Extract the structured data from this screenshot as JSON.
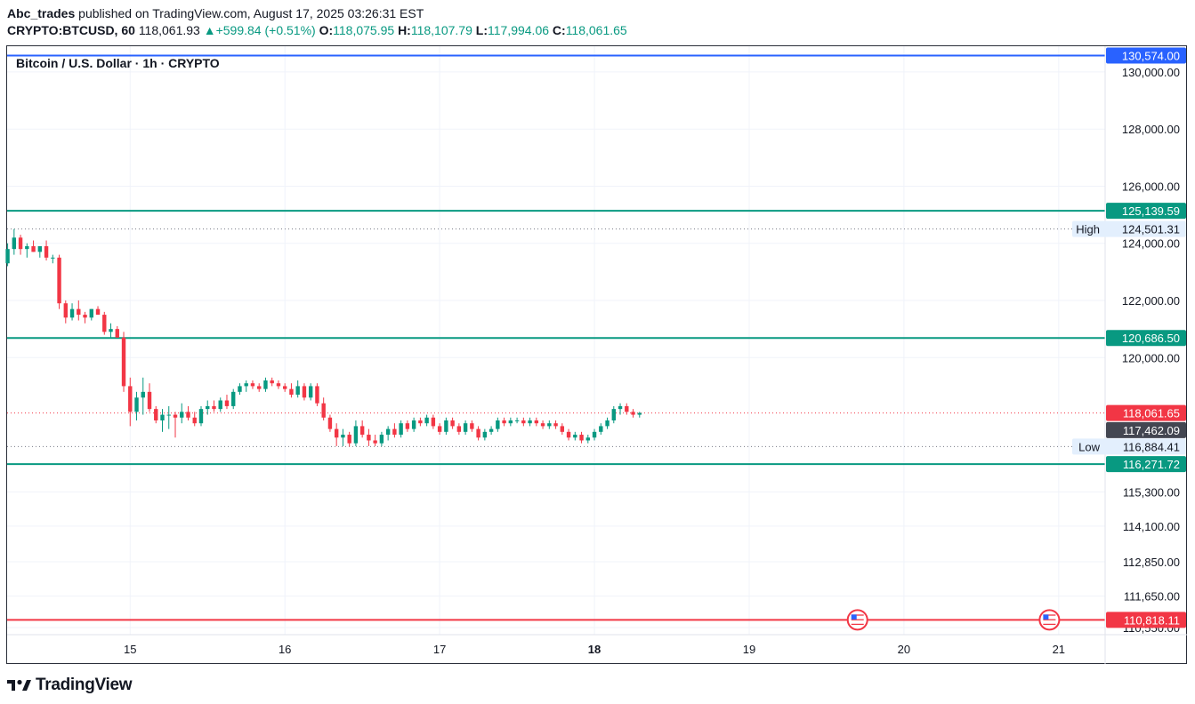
{
  "header": {
    "publisher": "Abc_trades",
    "published_text": "published on TradingView.com, August 17, 2025 03:26:31 EST",
    "symbol": "CRYPTO:BTCUSD, 60",
    "last": "118,061.93",
    "change": "+599.84 (+0.51%)",
    "open_label": "O:",
    "open": "118,075.95",
    "high_label": "H:",
    "high": "118,107.79",
    "low_label": "L:",
    "low": "117,994.06",
    "close_label": "C:",
    "close": "118,061.65",
    "up_color": "#089981"
  },
  "chart_title": "Bitcoin / U.S. Dollar · 1h · CRYPTO",
  "footer": {
    "brand": "TradingView",
    "logo_icon": "tradingview-logo-icon"
  },
  "chart_data": {
    "type": "candlestick",
    "x_ticks": [
      {
        "label": "15",
        "day": 15
      },
      {
        "label": "16",
        "day": 16
      },
      {
        "label": "17",
        "day": 17
      },
      {
        "label": "18",
        "day": 18
      },
      {
        "label": "19",
        "day": 19
      },
      {
        "label": "20",
        "day": 20
      },
      {
        "label": "21",
        "day": 21
      }
    ],
    "x_range_days": [
      14.205,
      21.3
    ],
    "y_range": [
      110300,
      130900
    ],
    "y_ticks": [
      {
        "label": "130,000.00",
        "value": 130000
      },
      {
        "label": "128,000.00",
        "value": 128000
      },
      {
        "label": "126,000.00",
        "value": 126000
      },
      {
        "label": "124,000.00",
        "value": 124000
      },
      {
        "label": "122,000.00",
        "value": 122000
      },
      {
        "label": "120,000.00",
        "value": 120000
      },
      {
        "label": "115,300.00",
        "value": 115300
      },
      {
        "label": "114,100.00",
        "value": 114100
      },
      {
        "label": "112,850.00",
        "value": 112850
      },
      {
        "label": "111,650.00",
        "value": 111650
      },
      {
        "label": "110,550.00",
        "value": 110550
      }
    ],
    "horizontal_levels": [
      {
        "label": "130,574.00",
        "value": 130574,
        "color": "#2962ff",
        "style": "solid"
      },
      {
        "label": "125,139.59",
        "value": 125139.59,
        "color": "#089981",
        "style": "solid"
      },
      {
        "label": "120,686.50",
        "value": 120686.5,
        "color": "#089981",
        "style": "solid"
      },
      {
        "label": "116,271.72",
        "value": 116271.72,
        "color": "#089981",
        "style": "solid"
      },
      {
        "label": "110,818.11",
        "value": 110818.11,
        "color": "#f23645",
        "style": "solid"
      }
    ],
    "price_markers": [
      {
        "label": "118,061.65",
        "value": 118061.65,
        "color": "#f23645",
        "tag": ""
      },
      {
        "label": "117,462.09",
        "value": 117462.09,
        "color": "#434651",
        "tag": ""
      },
      {
        "label": "124,501.31",
        "value": 124501.31,
        "color": "#e3effd",
        "tag": "High"
      },
      {
        "label": "116,884.41",
        "value": 116884.41,
        "color": "#e3effd",
        "tag": "Low"
      }
    ],
    "dotted_lines": [
      {
        "value": 124501.31,
        "color": "#787b86"
      },
      {
        "value": 118061.65,
        "color": "#f23645"
      },
      {
        "value": 116884.41,
        "color": "#787b86"
      }
    ],
    "event_icons": [
      {
        "day": 19.7,
        "value": 110818.11,
        "icon": "us-flag-icon"
      },
      {
        "day": 20.94,
        "value": 110818.11,
        "icon": "us-flag-icon"
      }
    ],
    "candles": [
      {
        "o": 123300,
        "h": 124000,
        "l": 123200,
        "c": 123800
      },
      {
        "o": 123800,
        "h": 124501,
        "l": 123600,
        "c": 124200
      },
      {
        "o": 124200,
        "h": 124300,
        "l": 123600,
        "c": 123800
      },
      {
        "o": 123800,
        "h": 124000,
        "l": 123500,
        "c": 123900
      },
      {
        "o": 123900,
        "h": 124100,
        "l": 123700,
        "c": 123700
      },
      {
        "o": 123700,
        "h": 123900,
        "l": 123500,
        "c": 123900
      },
      {
        "o": 123900,
        "h": 124100,
        "l": 123400,
        "c": 123500
      },
      {
        "o": 123500,
        "h": 123600,
        "l": 123300,
        "c": 123500
      },
      {
        "o": 123500,
        "h": 123600,
        "l": 121700,
        "c": 121900
      },
      {
        "o": 121900,
        "h": 122000,
        "l": 121200,
        "c": 121400
      },
      {
        "o": 121400,
        "h": 121900,
        "l": 121300,
        "c": 121700
      },
      {
        "o": 121700,
        "h": 122000,
        "l": 121300,
        "c": 121500
      },
      {
        "o": 121500,
        "h": 121600,
        "l": 121200,
        "c": 121400
      },
      {
        "o": 121400,
        "h": 121700,
        "l": 121300,
        "c": 121700
      },
      {
        "o": 121700,
        "h": 121800,
        "l": 121500,
        "c": 121500
      },
      {
        "o": 121500,
        "h": 121600,
        "l": 120800,
        "c": 120900
      },
      {
        "o": 120900,
        "h": 121200,
        "l": 120700,
        "c": 121000
      },
      {
        "o": 121000,
        "h": 121100,
        "l": 120700,
        "c": 120700
      },
      {
        "o": 120700,
        "h": 120900,
        "l": 118800,
        "c": 119000
      },
      {
        "o": 119000,
        "h": 119300,
        "l": 117600,
        "c": 118100
      },
      {
        "o": 118100,
        "h": 118800,
        "l": 117800,
        "c": 118600
      },
      {
        "o": 118600,
        "h": 119300,
        "l": 118000,
        "c": 118800
      },
      {
        "o": 118800,
        "h": 119100,
        "l": 118100,
        "c": 118200
      },
      {
        "o": 118200,
        "h": 118300,
        "l": 117700,
        "c": 117800
      },
      {
        "o": 117800,
        "h": 118200,
        "l": 117400,
        "c": 118000
      },
      {
        "o": 118000,
        "h": 118300,
        "l": 117500,
        "c": 118000
      },
      {
        "o": 118000,
        "h": 118100,
        "l": 117200,
        "c": 117900
      },
      {
        "o": 117900,
        "h": 118400,
        "l": 117700,
        "c": 118100
      },
      {
        "o": 118100,
        "h": 118300,
        "l": 117800,
        "c": 117900
      },
      {
        "o": 117900,
        "h": 118100,
        "l": 117600,
        "c": 117700
      },
      {
        "o": 117700,
        "h": 118300,
        "l": 117600,
        "c": 118200
      },
      {
        "o": 118200,
        "h": 118500,
        "l": 118000,
        "c": 118300
      },
      {
        "o": 118300,
        "h": 118500,
        "l": 118100,
        "c": 118200
      },
      {
        "o": 118200,
        "h": 118600,
        "l": 118100,
        "c": 118500
      },
      {
        "o": 118500,
        "h": 118700,
        "l": 118200,
        "c": 118300
      },
      {
        "o": 118300,
        "h": 118900,
        "l": 118200,
        "c": 118800
      },
      {
        "o": 118800,
        "h": 119100,
        "l": 118700,
        "c": 119000
      },
      {
        "o": 119000,
        "h": 119200,
        "l": 118800,
        "c": 119100
      },
      {
        "o": 119100,
        "h": 119200,
        "l": 118900,
        "c": 119000
      },
      {
        "o": 119000,
        "h": 119100,
        "l": 118800,
        "c": 118900
      },
      {
        "o": 118900,
        "h": 119300,
        "l": 118800,
        "c": 119200
      },
      {
        "o": 119200,
        "h": 119300,
        "l": 119000,
        "c": 119100
      },
      {
        "o": 119100,
        "h": 119200,
        "l": 118900,
        "c": 119000
      },
      {
        "o": 119000,
        "h": 119100,
        "l": 118800,
        "c": 118900
      },
      {
        "o": 118900,
        "h": 119100,
        "l": 118600,
        "c": 118700
      },
      {
        "o": 118700,
        "h": 119200,
        "l": 118600,
        "c": 119000
      },
      {
        "o": 119000,
        "h": 119100,
        "l": 118500,
        "c": 118600
      },
      {
        "o": 118600,
        "h": 119100,
        "l": 118500,
        "c": 119000
      },
      {
        "o": 119000,
        "h": 119100,
        "l": 118300,
        "c": 118400
      },
      {
        "o": 118400,
        "h": 118600,
        "l": 117800,
        "c": 117900
      },
      {
        "o": 117900,
        "h": 118000,
        "l": 117400,
        "c": 117500
      },
      {
        "o": 117500,
        "h": 117700,
        "l": 116900,
        "c": 117200
      },
      {
        "o": 117200,
        "h": 117500,
        "l": 116900,
        "c": 117300
      },
      {
        "o": 117300,
        "h": 117400,
        "l": 116884,
        "c": 117000
      },
      {
        "o": 117000,
        "h": 117800,
        "l": 116900,
        "c": 117600
      },
      {
        "o": 117600,
        "h": 117800,
        "l": 117200,
        "c": 117300
      },
      {
        "o": 117300,
        "h": 117500,
        "l": 116900,
        "c": 117100
      },
      {
        "o": 117100,
        "h": 117300,
        "l": 116900,
        "c": 117000
      },
      {
        "o": 117000,
        "h": 117400,
        "l": 116900,
        "c": 117300
      },
      {
        "o": 117300,
        "h": 117600,
        "l": 117100,
        "c": 117500
      },
      {
        "o": 117500,
        "h": 117700,
        "l": 117200,
        "c": 117300
      },
      {
        "o": 117300,
        "h": 117800,
        "l": 117200,
        "c": 117700
      },
      {
        "o": 117700,
        "h": 117800,
        "l": 117400,
        "c": 117500
      },
      {
        "o": 117500,
        "h": 117900,
        "l": 117400,
        "c": 117800
      },
      {
        "o": 117800,
        "h": 117900,
        "l": 117600,
        "c": 117700
      },
      {
        "o": 117700,
        "h": 118000,
        "l": 117600,
        "c": 117900
      },
      {
        "o": 117900,
        "h": 118000,
        "l": 117500,
        "c": 117600
      },
      {
        "o": 117600,
        "h": 117700,
        "l": 117300,
        "c": 117400
      },
      {
        "o": 117400,
        "h": 117900,
        "l": 117300,
        "c": 117800
      },
      {
        "o": 117800,
        "h": 117900,
        "l": 117500,
        "c": 117600
      },
      {
        "o": 117600,
        "h": 117700,
        "l": 117300,
        "c": 117400
      },
      {
        "o": 117400,
        "h": 117800,
        "l": 117300,
        "c": 117700
      },
      {
        "o": 117700,
        "h": 117800,
        "l": 117400,
        "c": 117500
      },
      {
        "o": 117500,
        "h": 117600,
        "l": 117100,
        "c": 117200
      },
      {
        "o": 117200,
        "h": 117500,
        "l": 117100,
        "c": 117400
      },
      {
        "o": 117400,
        "h": 117600,
        "l": 117300,
        "c": 117500
      },
      {
        "o": 117500,
        "h": 117900,
        "l": 117400,
        "c": 117800
      },
      {
        "o": 117800,
        "h": 117900,
        "l": 117600,
        "c": 117700
      },
      {
        "o": 117700,
        "h": 117900,
        "l": 117600,
        "c": 117800
      },
      {
        "o": 117800,
        "h": 117900,
        "l": 117700,
        "c": 117800
      },
      {
        "o": 117800,
        "h": 117900,
        "l": 117600,
        "c": 117700
      },
      {
        "o": 117700,
        "h": 117900,
        "l": 117600,
        "c": 117800
      },
      {
        "o": 117800,
        "h": 117900,
        "l": 117600,
        "c": 117700
      },
      {
        "o": 117700,
        "h": 117800,
        "l": 117500,
        "c": 117600
      },
      {
        "o": 117600,
        "h": 117800,
        "l": 117500,
        "c": 117700
      },
      {
        "o": 117700,
        "h": 117800,
        "l": 117500,
        "c": 117600
      },
      {
        "o": 117600,
        "h": 117700,
        "l": 117300,
        "c": 117400
      },
      {
        "o": 117400,
        "h": 117500,
        "l": 117100,
        "c": 117200
      },
      {
        "o": 117200,
        "h": 117400,
        "l": 117100,
        "c": 117300
      },
      {
        "o": 117300,
        "h": 117400,
        "l": 117000,
        "c": 117100
      },
      {
        "o": 117100,
        "h": 117300,
        "l": 117000,
        "c": 117200
      },
      {
        "o": 117200,
        "h": 117500,
        "l": 117100,
        "c": 117400
      },
      {
        "o": 117400,
        "h": 117700,
        "l": 117300,
        "c": 117600
      },
      {
        "o": 117600,
        "h": 117900,
        "l": 117500,
        "c": 117800
      },
      {
        "o": 117800,
        "h": 118300,
        "l": 117700,
        "c": 118200
      },
      {
        "o": 118200,
        "h": 118400,
        "l": 118000,
        "c": 118300
      },
      {
        "o": 118300,
        "h": 118400,
        "l": 118000,
        "c": 118100
      },
      {
        "o": 118100,
        "h": 118200,
        "l": 117900,
        "c": 118000
      },
      {
        "o": 118000,
        "h": 118100,
        "l": 117900,
        "c": 118062
      }
    ]
  }
}
